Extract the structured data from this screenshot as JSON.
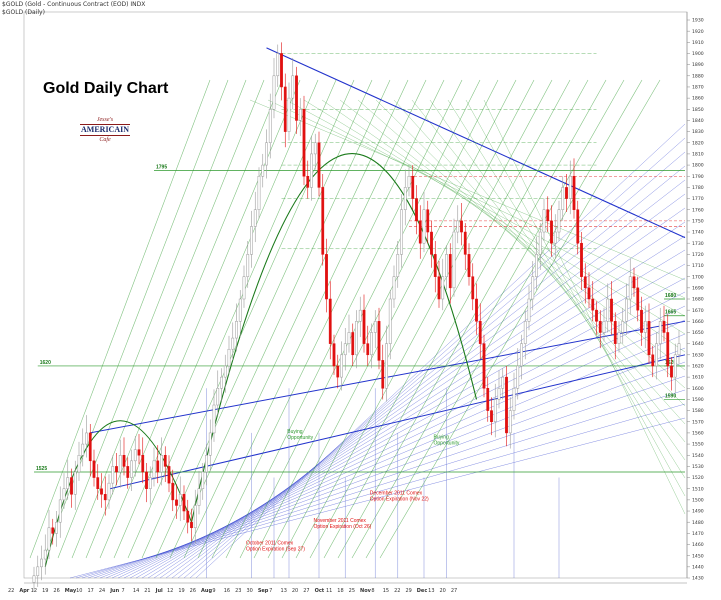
{
  "header": {
    "symbol_line": "$GOLD (Gold - Continuous Contract (EOD) INDX",
    "sub_line": "$GOLD (Daily)"
  },
  "title": "Gold Daily Chart",
  "logo": {
    "line1": "Jesse's",
    "line2": "AMERICAIN",
    "line3": "Cafe"
  },
  "colors": {
    "up_candle": "#9a9a9a",
    "down_candle": "#e01010",
    "green_lines": "#2e9a2e",
    "blue_lines": "#2233cc",
    "annotation_red": "#e01010",
    "annotation_green": "#2e9a2e"
  },
  "chart_data": {
    "type": "candlestick",
    "title": "Gold Daily Chart",
    "ylim": [
      1430,
      1930
    ],
    "y_ticks": [
      1430,
      1440,
      1450,
      1460,
      1470,
      1480,
      1490,
      1500,
      1510,
      1520,
      1530,
      1540,
      1550,
      1560,
      1570,
      1580,
      1590,
      1600,
      1610,
      1620,
      1630,
      1640,
      1650,
      1660,
      1670,
      1680,
      1690,
      1700,
      1710,
      1720,
      1730,
      1740,
      1750,
      1760,
      1770,
      1780,
      1790,
      1800,
      1810,
      1820,
      1830,
      1840,
      1850,
      1860,
      1870,
      1880,
      1890,
      1900,
      1910,
      1920,
      1930
    ],
    "x_ticks": [
      {
        "label": "22",
        "bold": false
      },
      {
        "label": "Apr",
        "bold": true
      },
      {
        "label": "12",
        "bold": false
      },
      {
        "label": "19",
        "bold": false
      },
      {
        "label": "26",
        "bold": false
      },
      {
        "label": "May",
        "bold": true
      },
      {
        "label": "10",
        "bold": false
      },
      {
        "label": "17",
        "bold": false
      },
      {
        "label": "24",
        "bold": false
      },
      {
        "label": "Jun",
        "bold": true
      },
      {
        "label": "7",
        "bold": false
      },
      {
        "label": "14",
        "bold": false
      },
      {
        "label": "21",
        "bold": false
      },
      {
        "label": "Jul",
        "bold": true
      },
      {
        "label": "12",
        "bold": false
      },
      {
        "label": "19",
        "bold": false
      },
      {
        "label": "26",
        "bold": false
      },
      {
        "label": "Aug",
        "bold": true
      },
      {
        "label": "9",
        "bold": false
      },
      {
        "label": "16",
        "bold": false
      },
      {
        "label": "23",
        "bold": false
      },
      {
        "label": "30",
        "bold": false
      },
      {
        "label": "Sep",
        "bold": true
      },
      {
        "label": "7",
        "bold": false
      },
      {
        "label": "13",
        "bold": false
      },
      {
        "label": "20",
        "bold": false
      },
      {
        "label": "27",
        "bold": false
      },
      {
        "label": "Oct",
        "bold": true
      },
      {
        "label": "11",
        "bold": false
      },
      {
        "label": "18",
        "bold": false
      },
      {
        "label": "25",
        "bold": false
      },
      {
        "label": "Nov",
        "bold": true
      },
      {
        "label": "8",
        "bold": false
      },
      {
        "label": "15",
        "bold": false
      },
      {
        "label": "22",
        "bold": false
      },
      {
        "label": "29",
        "bold": false
      },
      {
        "label": "Dec",
        "bold": true
      },
      {
        "label": "13",
        "bold": false
      },
      {
        "label": "20",
        "bold": false
      },
      {
        "label": "27",
        "bold": false
      }
    ],
    "closes": [
      1432,
      1440,
      1447,
      1455,
      1475,
      1470,
      1480,
      1500,
      1510,
      1520,
      1505,
      1525,
      1540,
      1550,
      1560,
      1535,
      1520,
      1510,
      1505,
      1500,
      1515,
      1530,
      1525,
      1540,
      1530,
      1520,
      1535,
      1545,
      1540,
      1525,
      1510,
      1520,
      1535,
      1525,
      1540,
      1530,
      1515,
      1500,
      1495,
      1505,
      1490,
      1480,
      1475,
      1495,
      1510,
      1525,
      1540,
      1560,
      1585,
      1600,
      1610,
      1620,
      1635,
      1645,
      1660,
      1680,
      1700,
      1720,
      1745,
      1760,
      1790,
      1800,
      1820,
      1850,
      1880,
      1900,
      1870,
      1830,
      1860,
      1880,
      1840,
      1850,
      1790,
      1780,
      1810,
      1820,
      1780,
      1720,
      1680,
      1640,
      1620,
      1610,
      1630,
      1640,
      1650,
      1630,
      1660,
      1670,
      1640,
      1630,
      1650,
      1660,
      1625,
      1600,
      1640,
      1680,
      1700,
      1720,
      1760,
      1780,
      1790,
      1770,
      1750,
      1730,
      1760,
      1740,
      1720,
      1700,
      1680,
      1700,
      1720,
      1690,
      1740,
      1750,
      1740,
      1720,
      1700,
      1680,
      1660,
      1640,
      1600,
      1580,
      1570,
      1590,
      1600,
      1610,
      1560,
      1580,
      1600,
      1620,
      1640,
      1660,
      1680,
      1700,
      1720,
      1740,
      1760,
      1750,
      1730,
      1740,
      1760,
      1780,
      1770,
      1790,
      1760,
      1730,
      1700,
      1690,
      1680,
      1670,
      1660,
      1650,
      1660,
      1680,
      1660,
      1640,
      1650,
      1660,
      1680,
      1700,
      1690,
      1670,
      1650,
      1660,
      1630,
      1620,
      1640,
      1660,
      1650,
      1620,
      1610,
      1630,
      1640
    ],
    "horizontal_levels": [
      {
        "value": 1795,
        "label": "1795",
        "color": "green",
        "start_date_index": 32
      },
      {
        "value": 1620,
        "label": "1620",
        "color": "green",
        "start_date_index": 1
      },
      {
        "value": 1525,
        "label": "1525",
        "color": "green",
        "start_date_index": 0
      },
      {
        "value": 1680,
        "label": "1680",
        "color": "green",
        "start_date_index": 168
      },
      {
        "value": 1665,
        "label": "1665",
        "color": "green",
        "start_date_index": 168
      },
      {
        "value": 1620,
        "label": "1620",
        "color": "green",
        "start_date_index": 168
      },
      {
        "value": 1590,
        "label": "1590",
        "color": "green",
        "start_date_index": 168
      }
    ],
    "annotations": [
      {
        "text": "Buying\nOpportunity",
        "color": "green",
        "date_index": 67,
        "value": 1560
      },
      {
        "text": "Buying\nOpportunity",
        "color": "green",
        "date_index": 106,
        "value": 1555
      },
      {
        "text": "October 2011 Comex\nOption Expiration (Sep 27)",
        "color": "red",
        "date_index": 56,
        "value": 1460
      },
      {
        "text": "November 2011 Comex\nOption Expiration  (Oct 26)",
        "color": "red",
        "date_index": 74,
        "value": 1480
      },
      {
        "text": "December 2011 Comex\nOption Expiration (Nov 22)",
        "color": "red",
        "date_index": 89,
        "value": 1505
      }
    ],
    "grid": false,
    "legend": "none"
  }
}
